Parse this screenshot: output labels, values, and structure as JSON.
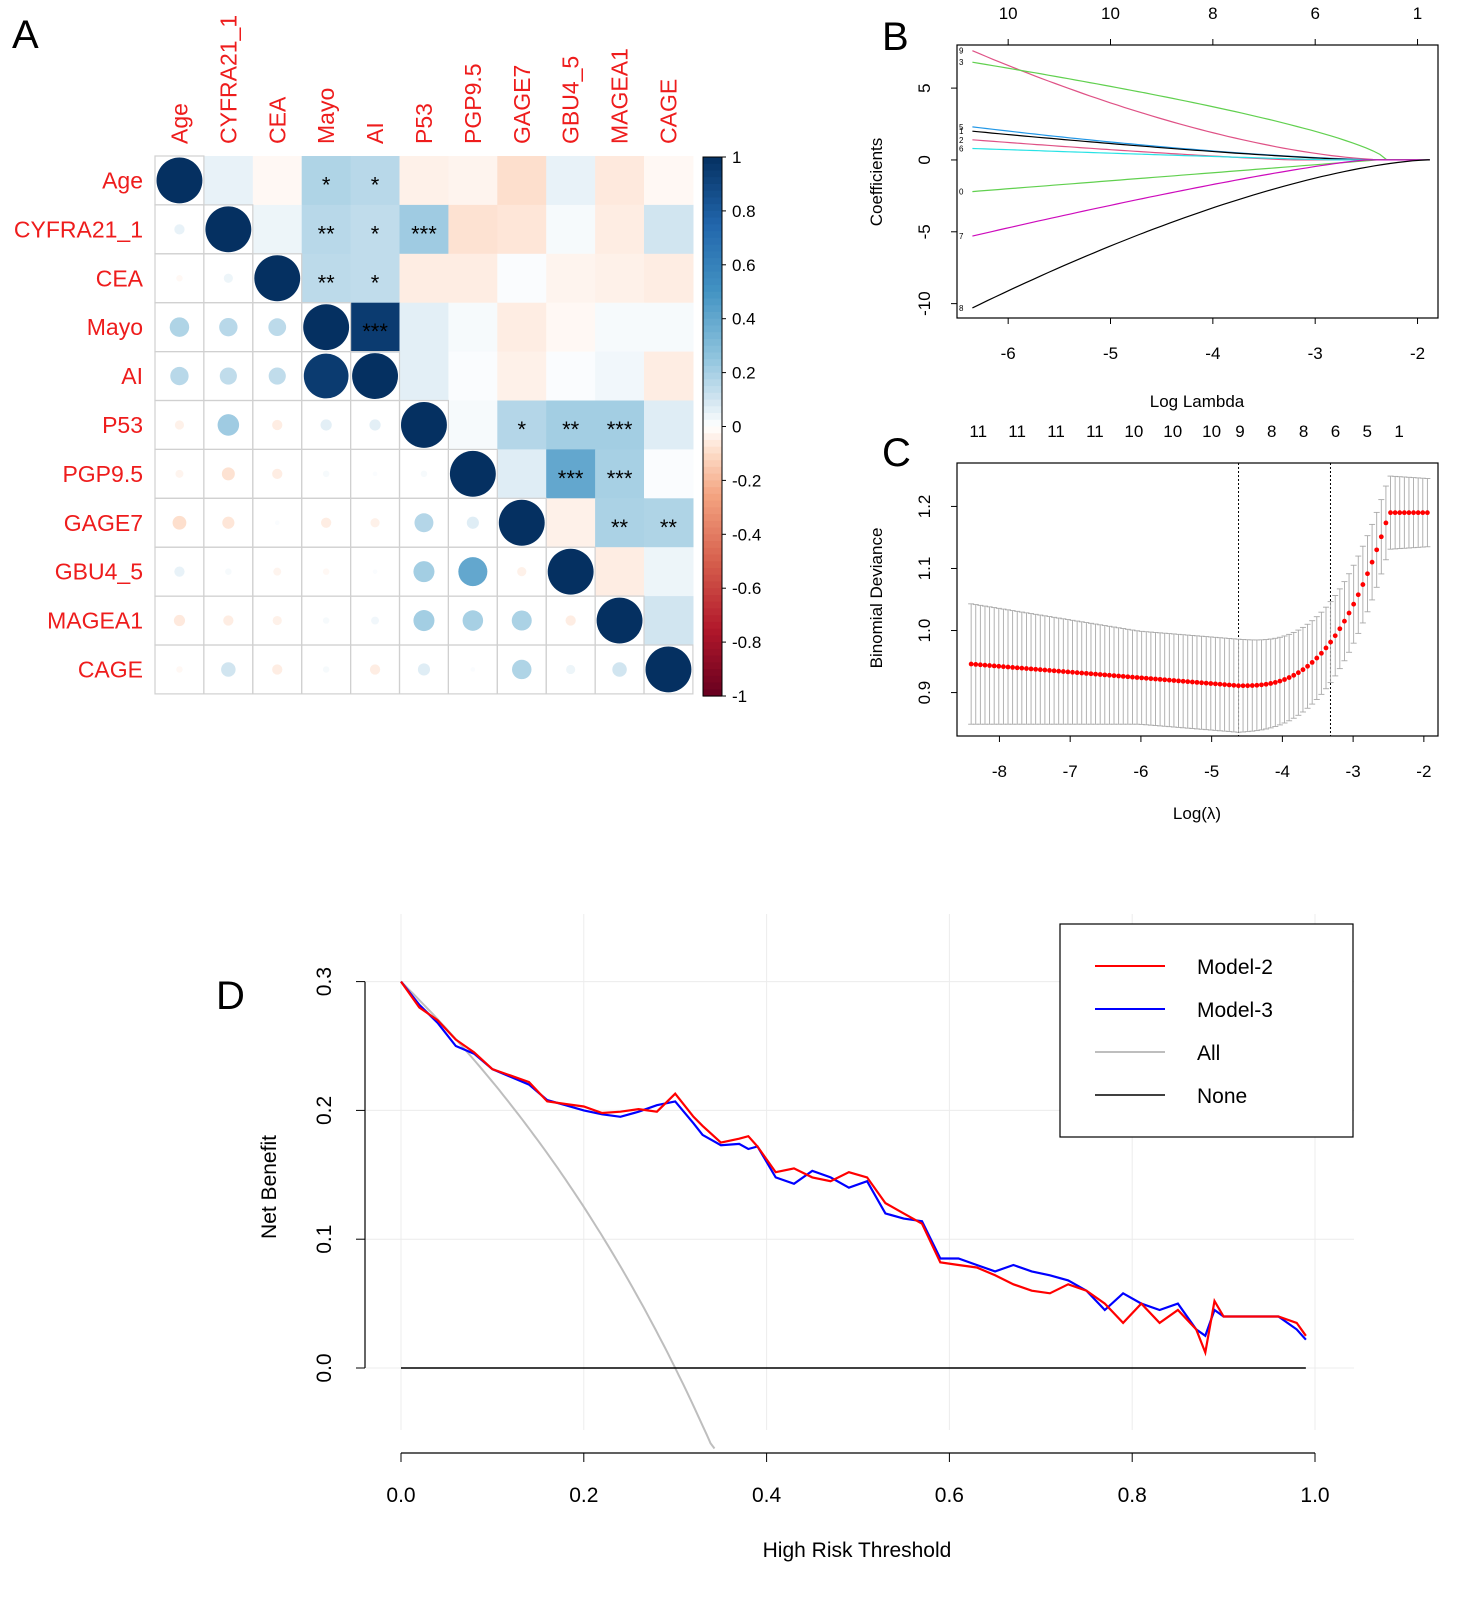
{
  "panels": {
    "A": "A",
    "B": "B",
    "C": "C",
    "D": "D"
  },
  "colors": {
    "label_red": "#ee1c1c",
    "model2": "#ff0000",
    "model3": "#0000ff",
    "all": "#bebebe",
    "none": "#000000",
    "dev_points": "#ff0000"
  },
  "chart_data": [
    {
      "id": "A",
      "type": "heatmap",
      "title": "",
      "variables": [
        "Age",
        "CYFRA21_1",
        "CEA",
        "Mayo",
        "AI",
        "P53",
        "PGP9.5",
        "GAGE7",
        "GBU4_5",
        "MAGEA1",
        "CAGE"
      ],
      "matrix": [
        [
          1,
          0.05,
          -0.02,
          0.18,
          0.16,
          -0.04,
          -0.03,
          -0.09,
          0.05,
          -0.06,
          -0.02
        ],
        [
          0.05,
          1,
          0.04,
          0.16,
          0.14,
          0.22,
          -0.08,
          -0.07,
          0.02,
          -0.05,
          0.1
        ],
        [
          -0.02,
          0.04,
          1,
          0.15,
          0.14,
          -0.05,
          -0.05,
          0.01,
          -0.03,
          -0.04,
          -0.05
        ],
        [
          0.18,
          0.16,
          0.15,
          1,
          0.95,
          0.06,
          0.02,
          -0.05,
          -0.02,
          0.02,
          0.02
        ],
        [
          0.16,
          0.14,
          0.14,
          0.95,
          1,
          0.06,
          0.01,
          -0.04,
          0.01,
          0.03,
          -0.05
        ],
        [
          -0.04,
          0.22,
          -0.05,
          0.06,
          0.06,
          1,
          0.02,
          0.17,
          0.21,
          0.21,
          0.07
        ],
        [
          -0.03,
          -0.08,
          -0.05,
          0.02,
          0.01,
          0.02,
          1,
          0.07,
          0.4,
          0.2,
          0.01
        ],
        [
          -0.09,
          -0.07,
          0.01,
          -0.05,
          -0.04,
          0.17,
          0.07,
          1,
          -0.04,
          0.19,
          0.18
        ],
        [
          0.05,
          0.02,
          -0.03,
          -0.02,
          0.01,
          0.21,
          0.4,
          -0.04,
          1,
          -0.05,
          0.04
        ],
        [
          -0.06,
          -0.05,
          -0.04,
          0.02,
          0.03,
          0.21,
          0.2,
          0.19,
          -0.05,
          1,
          0.1
        ],
        [
          -0.02,
          0.1,
          -0.05,
          0.02,
          -0.05,
          0.07,
          0.01,
          0.18,
          0.04,
          0.1,
          1
        ]
      ],
      "significance": [
        {
          "row": 0,
          "col": 3,
          "label": "*"
        },
        {
          "row": 0,
          "col": 4,
          "label": "*"
        },
        {
          "row": 1,
          "col": 3,
          "label": "**"
        },
        {
          "row": 1,
          "col": 4,
          "label": "*"
        },
        {
          "row": 1,
          "col": 5,
          "label": "***"
        },
        {
          "row": 2,
          "col": 3,
          "label": "**"
        },
        {
          "row": 2,
          "col": 4,
          "label": "*"
        },
        {
          "row": 3,
          "col": 4,
          "label": "***"
        },
        {
          "row": 5,
          "col": 7,
          "label": "*"
        },
        {
          "row": 5,
          "col": 8,
          "label": "**"
        },
        {
          "row": 5,
          "col": 9,
          "label": "***"
        },
        {
          "row": 6,
          "col": 8,
          "label": "***"
        },
        {
          "row": 6,
          "col": 9,
          "label": "***"
        },
        {
          "row": 7,
          "col": 9,
          "label": "**"
        },
        {
          "row": 7,
          "col": 10,
          "label": "**"
        }
      ],
      "colorbar": {
        "ticks": [
          "1",
          "0.8",
          "0.6",
          "0.4",
          "0.2",
          "0",
          "-0.2",
          "-0.4",
          "-0.6",
          "-0.8",
          "-1"
        ],
        "range": [
          -1,
          1
        ]
      }
    },
    {
      "id": "B",
      "type": "line",
      "title": "",
      "xlabel": "Log Lambda",
      "ylabel": "Coefficients",
      "xlim": [
        -6.5,
        -1.8
      ],
      "ylim": [
        -11,
        8
      ],
      "xticks": [
        "-6",
        "-5",
        "-4",
        "-3",
        "-2"
      ],
      "yticks": [
        "-10",
        "-5",
        "0",
        "5"
      ],
      "top_ticks": [
        "10",
        "10",
        "8",
        "6",
        "1"
      ],
      "top_tick_x": [
        -6,
        -5,
        -4,
        -3,
        -2
      ],
      "left_labels": [
        "9",
        "3",
        "5",
        "1",
        "2",
        "6",
        "0",
        "7",
        "8"
      ],
      "series": [
        {
          "name": "9",
          "color": "#df5286",
          "start": 7.6,
          "zero_at": -2.3,
          "shape": 1.6
        },
        {
          "name": "3",
          "color": "#61d04f",
          "start": 6.8,
          "zero_at": -2.3,
          "shape": 0.7
        },
        {
          "name": "5",
          "color": "#2297e6",
          "start": 2.3,
          "zero_at": -2.3,
          "shape": 1.5
        },
        {
          "name": "1",
          "color": "#000000",
          "start": 2.0,
          "zero_at": -2.5,
          "shape": 1.3
        },
        {
          "name": "2",
          "color": "#df5286",
          "start": 1.4,
          "zero_at": -3.2,
          "shape": 1.2
        },
        {
          "name": "6",
          "color": "#28e2e5",
          "start": 0.8,
          "zero_at": -2.8,
          "shape": 1.1
        },
        {
          "name": "0",
          "color": "#61d04f",
          "start": -2.2,
          "zero_at": -2.4,
          "shape": 1.0
        },
        {
          "name": "7",
          "color": "#cd0bbc",
          "start": -5.3,
          "zero_at": -2.5,
          "shape": 1.2
        },
        {
          "name": "8",
          "color": "#000000",
          "start": -10.3,
          "zero_at": -1.9,
          "shape": 1.5
        }
      ]
    },
    {
      "id": "C",
      "type": "scatter",
      "title": "",
      "xlabel": "Log(λ)",
      "ylabel": "Binomial Deviance",
      "xlim": [
        -8.6,
        -1.8
      ],
      "ylim": [
        0.83,
        1.27
      ],
      "xticks": [
        "-8",
        "-7",
        "-6",
        "-5",
        "-4",
        "-3",
        "-2"
      ],
      "yticks": [
        "0.9",
        "1.0",
        "1.1",
        "1.2"
      ],
      "top_ticks": [
        "11",
        "11",
        "11",
        "11",
        "10",
        "10",
        "10",
        "9",
        "8",
        "8",
        "6",
        "5",
        "1"
      ],
      "top_tick_x": [
        -8.3,
        -7.75,
        -7.2,
        -6.65,
        -6.1,
        -5.55,
        -5.0,
        -4.6,
        -4.15,
        -3.7,
        -3.25,
        -2.8,
        -2.35
      ],
      "vlines": [
        -4.62,
        -3.32
      ],
      "x_from": -8.4,
      "x_to": -1.95,
      "n_points": 100
    },
    {
      "id": "D",
      "type": "line",
      "title": "",
      "xlabel": "High Risk Threshold",
      "ylabel": "Net Benefit",
      "xlim": [
        0,
        1
      ],
      "ylim": [
        -0.06,
        0.3
      ],
      "xticks": [
        "0.0",
        "0.2",
        "0.4",
        "0.6",
        "0.8",
        "1.0"
      ],
      "yticks": [
        "0.0",
        "0.1",
        "0.2",
        "0.3"
      ],
      "legend": [
        "Model-2",
        "Model-3",
        "All",
        "None"
      ],
      "legend_position": "top-right",
      "prevalence": 0.3,
      "series": [
        {
          "name": "Model-2",
          "color": "#ff0000",
          "x": [
            0,
            0.02,
            0.04,
            0.06,
            0.08,
            0.1,
            0.12,
            0.14,
            0.16,
            0.18,
            0.2,
            0.22,
            0.24,
            0.26,
            0.28,
            0.3,
            0.32,
            0.33,
            0.35,
            0.37,
            0.38,
            0.39,
            0.41,
            0.43,
            0.45,
            0.47,
            0.49,
            0.51,
            0.53,
            0.55,
            0.57,
            0.59,
            0.61,
            0.63,
            0.65,
            0.67,
            0.69,
            0.71,
            0.73,
            0.75,
            0.77,
            0.79,
            0.81,
            0.83,
            0.85,
            0.87,
            0.88,
            0.89,
            0.9,
            0.92,
            0.94,
            0.96,
            0.98,
            0.99
          ],
          "y": [
            0.3,
            0.28,
            0.27,
            0.255,
            0.245,
            0.232,
            0.227,
            0.222,
            0.207,
            0.205,
            0.203,
            0.198,
            0.199,
            0.201,
            0.199,
            0.213,
            0.195,
            0.188,
            0.175,
            0.178,
            0.18,
            0.172,
            0.152,
            0.155,
            0.148,
            0.145,
            0.152,
            0.148,
            0.128,
            0.12,
            0.112,
            0.082,
            0.08,
            0.078,
            0.072,
            0.065,
            0.06,
            0.058,
            0.065,
            0.06,
            0.05,
            0.035,
            0.05,
            0.035,
            0.045,
            0.03,
            0.012,
            0.052,
            0.04,
            0.04,
            0.04,
            0.04,
            0.035,
            0.025
          ]
        },
        {
          "name": "Model-3",
          "color": "#0000ff",
          "x": [
            0,
            0.02,
            0.04,
            0.06,
            0.08,
            0.1,
            0.12,
            0.14,
            0.16,
            0.18,
            0.2,
            0.22,
            0.24,
            0.26,
            0.28,
            0.3,
            0.32,
            0.33,
            0.35,
            0.37,
            0.38,
            0.39,
            0.41,
            0.43,
            0.45,
            0.47,
            0.49,
            0.51,
            0.53,
            0.55,
            0.57,
            0.59,
            0.61,
            0.63,
            0.65,
            0.67,
            0.69,
            0.71,
            0.73,
            0.75,
            0.77,
            0.79,
            0.81,
            0.83,
            0.85,
            0.87,
            0.88,
            0.89,
            0.9,
            0.92,
            0.94,
            0.96,
            0.98,
            0.99
          ],
          "y": [
            0.3,
            0.282,
            0.268,
            0.25,
            0.244,
            0.232,
            0.226,
            0.22,
            0.208,
            0.204,
            0.2,
            0.197,
            0.195,
            0.199,
            0.204,
            0.207,
            0.19,
            0.181,
            0.173,
            0.174,
            0.17,
            0.172,
            0.148,
            0.143,
            0.153,
            0.148,
            0.14,
            0.145,
            0.12,
            0.116,
            0.114,
            0.085,
            0.085,
            0.08,
            0.075,
            0.08,
            0.075,
            0.072,
            0.068,
            0.06,
            0.045,
            0.058,
            0.05,
            0.045,
            0.05,
            0.03,
            0.025,
            0.045,
            0.04,
            0.04,
            0.04,
            0.04,
            0.03,
            0.022
          ]
        },
        {
          "name": "All",
          "color": "#bebebe"
        },
        {
          "name": "None",
          "color": "#000000",
          "x": [
            0,
            0.99
          ],
          "y": [
            0,
            0
          ]
        }
      ]
    }
  ]
}
